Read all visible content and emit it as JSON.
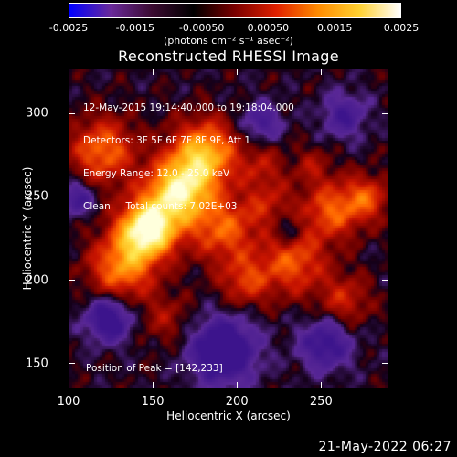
{
  "colorbar": {
    "ticks": [
      "-0.0025",
      "-0.0015",
      "-0.00050",
      "0.00050",
      "0.0015",
      "0.0025"
    ],
    "units_text": "(photons cm⁻² s⁻¹ asec⁻²)",
    "stops": [
      "#0000ff",
      "#6a2a9a",
      "#3a0a30",
      "#000000",
      "#7a0000",
      "#e02000",
      "#ff8a00",
      "#ffd030",
      "#ffffff"
    ]
  },
  "title": "Reconstructed RHESSI Image",
  "info_lines": [
    "12-May-2015 19:14:40.000 to 19:18:04.000",
    "Detectors: 3F 5F 6F 7F 8F 9F, Att 1",
    "Energy Range: 12.0 - 25.0 keV",
    "Clean     Total counts: 7.02E+03"
  ],
  "peak_text": "Position of Peak = [142,233]",
  "x_axis": {
    "label": "Heliocentric X (arcsec)",
    "ticks": [
      "100",
      "150",
      "200",
      "250"
    ],
    "range": [
      100,
      290
    ]
  },
  "y_axis": {
    "label": "Heliocentric Y (arcsec)",
    "ticks": [
      "300",
      "250",
      "200",
      "150"
    ],
    "range": [
      135,
      327
    ]
  },
  "timestamp": "21-May-2022 06:27"
}
